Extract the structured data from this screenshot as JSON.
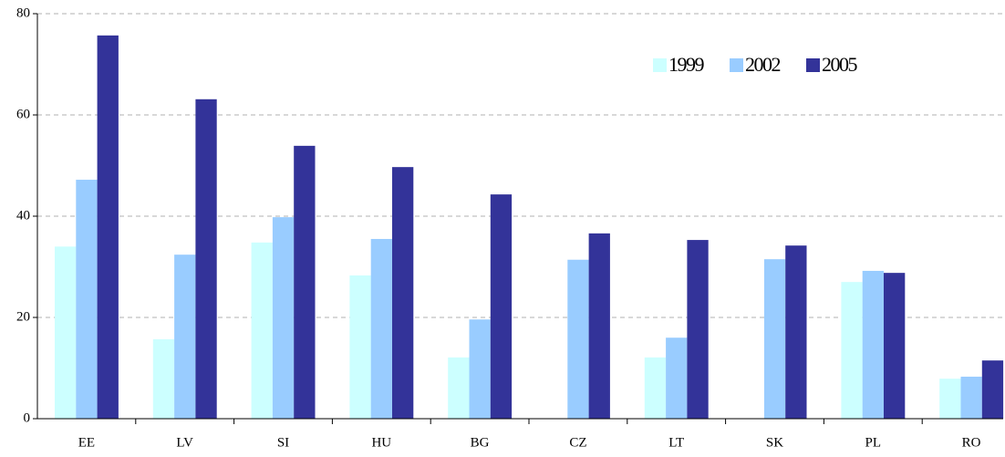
{
  "chart_data": {
    "type": "bar",
    "categories": [
      "EE",
      "LV",
      "SI",
      "HU",
      "BG",
      "CZ",
      "LT",
      "SK",
      "PL",
      "RO"
    ],
    "series": [
      {
        "name": "1999",
        "color": "#ccffff",
        "values": [
          34,
          15.7,
          34.8,
          28.3,
          12.1,
          null,
          12.1,
          null,
          27,
          7.9
        ]
      },
      {
        "name": "2002",
        "color": "#99ccff",
        "values": [
          47.2,
          32.4,
          39.8,
          35.5,
          19.6,
          31.4,
          16,
          31.5,
          29.2,
          8.3
        ]
      },
      {
        "name": "2005",
        "color": "#333399",
        "values": [
          75.7,
          63.1,
          53.9,
          49.7,
          44.3,
          36.6,
          35.3,
          34.2,
          28.8,
          11.5
        ]
      }
    ],
    "ylim": [
      0,
      80
    ],
    "yticks": [
      0,
      20,
      40,
      60,
      80
    ],
    "grid": true,
    "legend": "upper right"
  }
}
